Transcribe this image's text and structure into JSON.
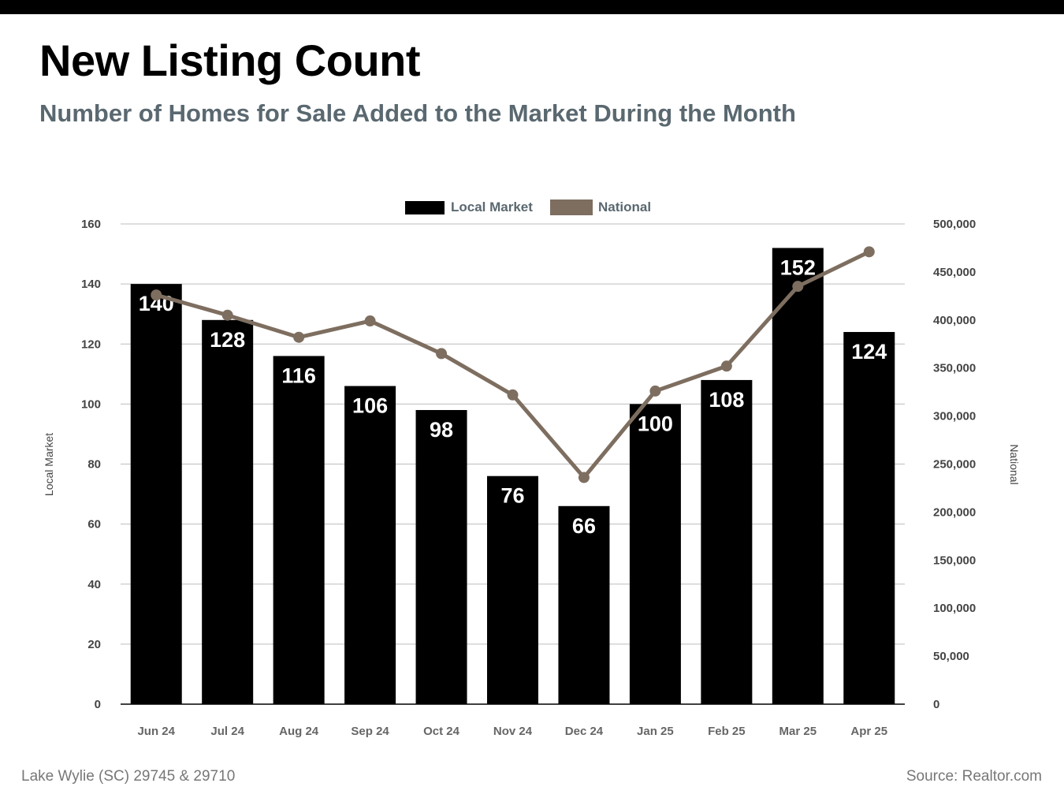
{
  "header": {
    "title": "New Listing Count",
    "subtitle": "Number of Homes for Sale Added to the Market During the Month"
  },
  "footer": {
    "location": "Lake Wylie (SC) 29745 & 29710",
    "source": "Source: Realtor.com"
  },
  "colors": {
    "bar": "#000000",
    "line": "#7d6e60",
    "grid": "#bdbdbd",
    "axis_text": "#444444",
    "legend_text": "#5a6870"
  },
  "chart_data": {
    "type": "bar",
    "categories": [
      "Jun 24",
      "Jul 24",
      "Aug 24",
      "Sep 24",
      "Oct 24",
      "Nov 24",
      "Dec 24",
      "Jan 25",
      "Feb 25",
      "Mar 25",
      "Apr 25"
    ],
    "series": [
      {
        "name": "Local Market",
        "type": "bar",
        "axis": "left",
        "values": [
          140,
          128,
          116,
          106,
          98,
          76,
          66,
          100,
          108,
          152,
          124
        ]
      },
      {
        "name": "National",
        "type": "line",
        "axis": "right",
        "values": [
          426000,
          405000,
          382000,
          399000,
          365000,
          322000,
          236000,
          326000,
          352000,
          435000,
          471000
        ]
      }
    ],
    "ylabel": "Local Market",
    "ylim": [
      0,
      160
    ],
    "yticks": [
      0,
      20,
      40,
      60,
      80,
      100,
      120,
      140,
      160
    ],
    "y2label": "National",
    "y2lim": [
      0,
      500000
    ],
    "y2ticks": [
      "0",
      "50,000",
      "100,000",
      "150,000",
      "200,000",
      "250,000",
      "300,000",
      "350,000",
      "400,000",
      "450,000",
      "500,000"
    ],
    "grid": true,
    "legend": "top-center"
  }
}
